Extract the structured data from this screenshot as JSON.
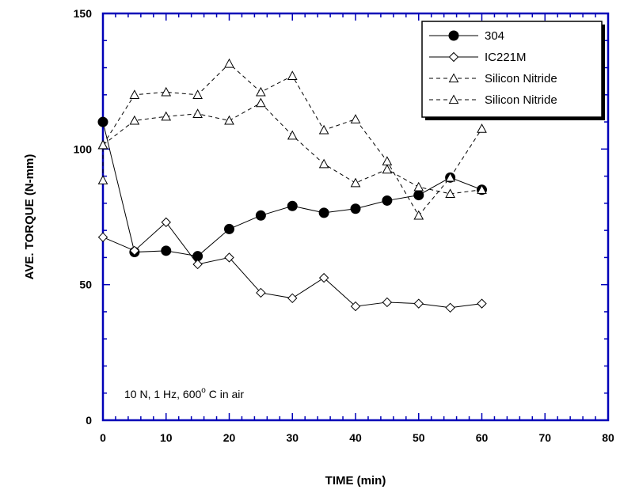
{
  "chart_data": {
    "type": "line",
    "xlabel": "TIME (min)",
    "ylabel": "AVE. TORQUE (N-mm)",
    "xlim": [
      0,
      80
    ],
    "ylim": [
      0,
      150
    ],
    "xticks": [
      0,
      10,
      20,
      30,
      40,
      50,
      60,
      70,
      80
    ],
    "yticks": [
      0,
      50,
      100,
      150
    ],
    "grid": false,
    "legend_position": "top-right",
    "annotation": {
      "prefix": "10 N, 1 Hz, 600",
      "superscript": "o",
      "suffix": " C in air"
    },
    "series": [
      {
        "name": "304",
        "marker": "filled-circle",
        "line_style": "solid",
        "x": [
          0,
          5,
          10,
          15,
          20,
          25,
          30,
          35,
          40,
          45,
          50,
          55,
          60
        ],
        "y": [
          110,
          62,
          62.5,
          60.5,
          70.5,
          75.5,
          79,
          76.5,
          78,
          81,
          83,
          89.5,
          85
        ]
      },
      {
        "name": "IC221M",
        "marker": "open-diamond",
        "line_style": "solid",
        "x": [
          0,
          5,
          10,
          15,
          20,
          25,
          30,
          35,
          40,
          45,
          50,
          55,
          60
        ],
        "y": [
          67.5,
          62.5,
          73,
          57.5,
          60,
          47,
          45,
          52.5,
          42,
          43.5,
          43,
          41.5,
          43
        ]
      },
      {
        "name": "Silicon Nitride",
        "marker": "open-triangle",
        "line_style": "dashed",
        "x": [
          0,
          5,
          10,
          15,
          20,
          25,
          30,
          35,
          40,
          45,
          50,
          55,
          60
        ],
        "y": [
          101.5,
          120,
          121,
          120,
          131.5,
          121,
          127,
          107,
          111,
          95.5,
          75.5,
          89.5,
          107.5
        ]
      },
      {
        "name": "Silicon Nitride",
        "marker": "open-triangle",
        "line_style": "dashed",
        "x": [
          0,
          0,
          5,
          10,
          15,
          20,
          25,
          30,
          35,
          40,
          45,
          50,
          55,
          60
        ],
        "y": [
          88.5,
          101.5,
          110.5,
          112,
          113,
          110.5,
          117,
          105,
          94.5,
          87.5,
          92.5,
          86,
          83.5,
          85
        ]
      }
    ]
  }
}
